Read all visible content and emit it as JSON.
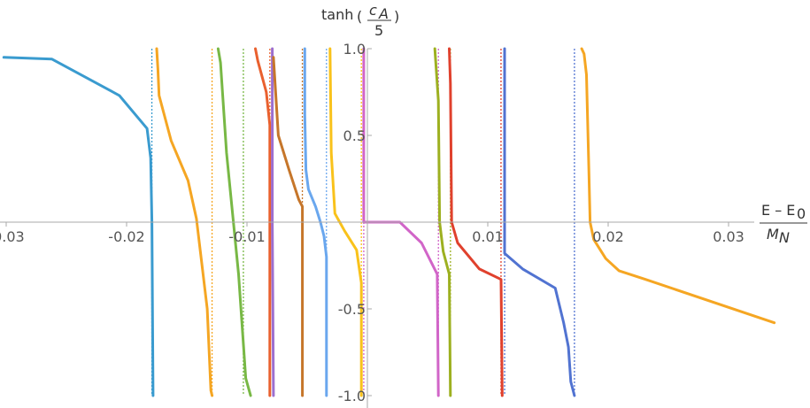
{
  "chart_data": {
    "type": "line",
    "title": "",
    "xlabel_num": "E – E",
    "xlabel_num_sub": "0",
    "xlabel_den": "M",
    "xlabel_den_sub": "N",
    "ylabel_func": "tanh",
    "ylabel_num": "c",
    "ylabel_num_sub": "A",
    "ylabel_den": "5",
    "xlim": [
      -0.03,
      0.034
    ],
    "ylim": [
      -1.0,
      1.0
    ],
    "x_ticks": [
      {
        "value": -0.03,
        "label": "-0.03"
      },
      {
        "value": -0.02,
        "label": "-0.02"
      },
      {
        "value": -0.01,
        "label": "-0.01"
      },
      {
        "value": 0.01,
        "label": "0.01"
      },
      {
        "value": 0.02,
        "label": "0.02"
      },
      {
        "value": 0.03,
        "label": "0.03"
      }
    ],
    "y_ticks": [
      {
        "value": 1.0,
        "label": "1.0"
      },
      {
        "value": 0.5,
        "label": "0.5"
      },
      {
        "value": -0.5,
        "label": "-0.5"
      },
      {
        "value": -1.0,
        "label": "-1.0"
      }
    ],
    "grid": false,
    "series": [
      {
        "color": "#3A9BCF",
        "points": [
          [
            -0.0302,
            0.95
          ],
          [
            -0.0262,
            0.94
          ],
          [
            -0.0206,
            0.73
          ],
          [
            -0.0183,
            0.54
          ],
          [
            -0.018,
            0.37
          ],
          [
            -0.0179,
            0.0
          ],
          [
            -0.0178,
            -1.0
          ]
        ]
      },
      {
        "color": "#F5A623",
        "points": [
          [
            -0.0175,
            1.0
          ],
          [
            -0.0174,
            0.88
          ],
          [
            -0.0173,
            0.73
          ],
          [
            -0.0163,
            0.47
          ],
          [
            -0.0149,
            0.24
          ],
          [
            -0.0142,
            0.02
          ],
          [
            -0.0133,
            -0.5
          ],
          [
            -0.013,
            -0.97
          ],
          [
            -0.0129,
            -1.0
          ]
        ]
      },
      {
        "color": "#78B845",
        "points": [
          [
            -0.0124,
            1.0
          ],
          [
            -0.0122,
            0.92
          ],
          [
            -0.0117,
            0.4
          ],
          [
            -0.0107,
            -0.3
          ],
          [
            -0.0101,
            -0.9
          ],
          [
            -0.0097,
            -1.0
          ]
        ]
      },
      {
        "color": "#E9602E",
        "points": [
          [
            -0.0093,
            1.0
          ],
          [
            -0.0091,
            0.93
          ],
          [
            -0.0084,
            0.75
          ],
          [
            -0.0081,
            0.56
          ],
          [
            -0.0081,
            0.0
          ],
          [
            -0.0081,
            -1.0
          ]
        ]
      },
      {
        "color": "#9C6FCF",
        "points": [
          [
            -0.0079,
            1.0
          ],
          [
            -0.0079,
            0.0
          ],
          [
            -0.0078,
            -1.0
          ]
        ]
      },
      {
        "color": "#C6762A",
        "points": [
          [
            -0.0078,
            0.95
          ],
          [
            -0.0074,
            0.5
          ],
          [
            -0.0065,
            0.3
          ],
          [
            -0.0057,
            0.13
          ],
          [
            -0.0054,
            0.09
          ],
          [
            -0.0054,
            0.0
          ],
          [
            -0.0054,
            -1.0
          ]
        ]
      },
      {
        "color": "#6AA7EE",
        "points": [
          [
            -0.0052,
            1.0
          ],
          [
            -0.0052,
            0.62
          ],
          [
            -0.0051,
            0.3
          ],
          [
            -0.0049,
            0.19
          ],
          [
            -0.0043,
            0.09
          ],
          [
            -0.0039,
            0.0
          ],
          [
            -0.0036,
            -0.08
          ],
          [
            -0.0034,
            -0.2
          ],
          [
            -0.0034,
            -1.0
          ]
        ]
      },
      {
        "color": "#F9C21B",
        "points": [
          [
            -0.0031,
            1.0
          ],
          [
            -0.003,
            0.4
          ],
          [
            -0.0027,
            0.05
          ],
          [
            -0.0019,
            -0.05
          ],
          [
            -0.0009,
            -0.16
          ],
          [
            -0.0005,
            -0.35
          ],
          [
            -0.0005,
            -1.0
          ]
        ]
      },
      {
        "color": "#D165C8",
        "points": [
          [
            -0.0003,
            1.0
          ],
          [
            -0.0003,
            0.0
          ],
          [
            0.0027,
            0.0
          ],
          [
            0.0045,
            -0.12
          ],
          [
            0.0058,
            -0.3
          ],
          [
            0.0059,
            -1.0
          ]
        ]
      },
      {
        "color": "#9DB020",
        "points": [
          [
            0.0056,
            1.0
          ],
          [
            0.0059,
            0.7
          ],
          [
            0.006,
            0.0
          ],
          [
            0.0063,
            -0.17
          ],
          [
            0.0068,
            -0.3
          ],
          [
            0.0069,
            -1.0
          ]
        ]
      },
      {
        "color": "#E0412D",
        "points": [
          [
            0.0068,
            1.0
          ],
          [
            0.0069,
            0.8
          ],
          [
            0.007,
            0.0
          ],
          [
            0.0075,
            -0.12
          ],
          [
            0.0093,
            -0.27
          ],
          [
            0.0111,
            -0.33
          ],
          [
            0.0112,
            -1.0
          ]
        ]
      },
      {
        "color": "#5173D1",
        "points": [
          [
            0.0114,
            1.0
          ],
          [
            0.0114,
            0.0
          ],
          [
            0.0114,
            -0.18
          ],
          [
            0.0129,
            -0.27
          ],
          [
            0.0156,
            -0.38
          ],
          [
            0.0163,
            -0.58
          ],
          [
            0.0167,
            -0.72
          ],
          [
            0.0169,
            -0.92
          ],
          [
            0.0172,
            -1.0
          ]
        ]
      },
      {
        "color": "#F5A623",
        "points": [
          [
            0.0178,
            1.0
          ],
          [
            0.018,
            0.97
          ],
          [
            0.0182,
            0.85
          ],
          [
            0.0184,
            0.3
          ],
          [
            0.0185,
            0.0
          ],
          [
            0.0188,
            -0.1
          ],
          [
            0.0198,
            -0.21
          ],
          [
            0.0209,
            -0.28
          ],
          [
            0.0231,
            -0.33
          ],
          [
            0.0338,
            -0.58
          ]
        ]
      }
    ],
    "asymptotes": [
      {
        "x": -0.0179,
        "color": "#3A9BCF"
      },
      {
        "x": -0.0129,
        "color": "#F5A623"
      },
      {
        "x": -0.0103,
        "color": "#78B845"
      },
      {
        "x": -0.0081,
        "color": "#E9602E"
      },
      {
        "x": -0.0054,
        "color": "#C6762A"
      },
      {
        "x": -0.0034,
        "color": "#6AA7EE"
      },
      {
        "x": -0.0005,
        "color": "#F9C21B"
      },
      {
        "x": -0.0003,
        "color": "#D165C8"
      },
      {
        "x": 0.0059,
        "color": "#D165C8"
      },
      {
        "x": 0.0069,
        "color": "#9DB020"
      },
      {
        "x": 0.0111,
        "color": "#E0412D"
      },
      {
        "x": 0.0114,
        "color": "#5173D1"
      },
      {
        "x": 0.0172,
        "color": "#5173D1"
      }
    ]
  }
}
